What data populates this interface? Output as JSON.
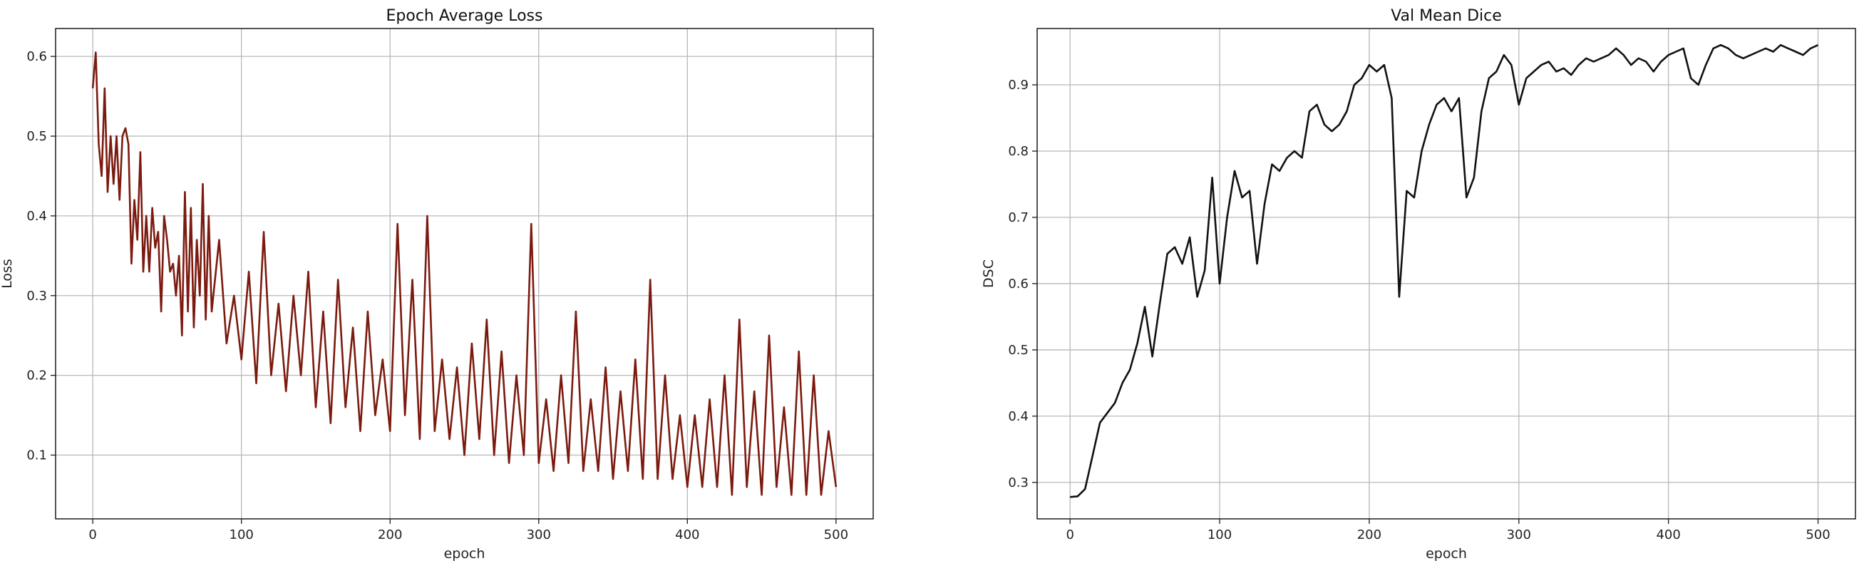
{
  "chart_data": [
    {
      "type": "line",
      "title": "Epoch Average Loss",
      "xlabel": "epoch",
      "ylabel": "Loss",
      "xlim": [
        -25,
        525
      ],
      "ylim": [
        0.02,
        0.635
      ],
      "xticks": [
        0,
        100,
        200,
        300,
        400,
        500
      ],
      "yticks": [
        0.1,
        0.2,
        0.3,
        0.4,
        0.5,
        0.6
      ],
      "xtick_labels": [
        "0",
        "100",
        "200",
        "300",
        "400",
        "500"
      ],
      "ytick_labels": [
        "0.1",
        "0.2",
        "0.3",
        "0.4",
        "0.5",
        "0.6"
      ],
      "grid": true,
      "color": "#7b1a0f",
      "series": [
        {
          "x": [
            0,
            2,
            4,
            6,
            8,
            10,
            12,
            14,
            16,
            18,
            20,
            22,
            24,
            26,
            28,
            30,
            32,
            34,
            36,
            38,
            40,
            42,
            44,
            46,
            48,
            50,
            52,
            54,
            56,
            58,
            60,
            62,
            64,
            66,
            68,
            70,
            72,
            74,
            76,
            78,
            80,
            85,
            90,
            95,
            100,
            105,
            110,
            115,
            120,
            125,
            130,
            135,
            140,
            145,
            150,
            155,
            160,
            165,
            170,
            175,
            180,
            185,
            190,
            195,
            200,
            205,
            210,
            215,
            220,
            225,
            230,
            235,
            240,
            245,
            250,
            255,
            260,
            265,
            270,
            275,
            280,
            285,
            290,
            295,
            300,
            305,
            310,
            315,
            320,
            325,
            330,
            335,
            340,
            345,
            350,
            355,
            360,
            365,
            370,
            375,
            380,
            385,
            390,
            395,
            400,
            405,
            410,
            415,
            420,
            425,
            430,
            435,
            440,
            445,
            450,
            455,
            460,
            465,
            470,
            475,
            480,
            485,
            490,
            495,
            500
          ],
          "y": [
            0.56,
            0.605,
            0.49,
            0.45,
            0.56,
            0.43,
            0.5,
            0.44,
            0.5,
            0.42,
            0.5,
            0.51,
            0.49,
            0.34,
            0.42,
            0.37,
            0.48,
            0.33,
            0.4,
            0.33,
            0.41,
            0.36,
            0.38,
            0.28,
            0.4,
            0.37,
            0.33,
            0.34,
            0.3,
            0.35,
            0.25,
            0.43,
            0.28,
            0.41,
            0.26,
            0.37,
            0.3,
            0.44,
            0.27,
            0.4,
            0.28,
            0.37,
            0.24,
            0.3,
            0.22,
            0.33,
            0.19,
            0.38,
            0.2,
            0.29,
            0.18,
            0.3,
            0.2,
            0.33,
            0.16,
            0.28,
            0.14,
            0.32,
            0.16,
            0.26,
            0.13,
            0.28,
            0.15,
            0.22,
            0.13,
            0.39,
            0.15,
            0.32,
            0.12,
            0.4,
            0.13,
            0.22,
            0.12,
            0.21,
            0.1,
            0.24,
            0.12,
            0.27,
            0.1,
            0.23,
            0.09,
            0.2,
            0.1,
            0.39,
            0.09,
            0.17,
            0.08,
            0.2,
            0.09,
            0.28,
            0.08,
            0.17,
            0.08,
            0.21,
            0.07,
            0.18,
            0.08,
            0.22,
            0.07,
            0.32,
            0.07,
            0.2,
            0.07,
            0.15,
            0.06,
            0.15,
            0.06,
            0.17,
            0.06,
            0.2,
            0.05,
            0.27,
            0.06,
            0.18,
            0.05,
            0.25,
            0.06,
            0.16,
            0.05,
            0.23,
            0.05,
            0.2,
            0.05,
            0.13,
            0.06
          ]
        }
      ]
    },
    {
      "type": "line",
      "title": "Val Mean Dice",
      "xlabel": "epoch",
      "ylabel": "DSC",
      "xlim": [
        -22,
        525
      ],
      "ylim": [
        0.245,
        0.985
      ],
      "xticks": [
        0,
        100,
        200,
        300,
        400,
        500
      ],
      "yticks": [
        0.3,
        0.4,
        0.5,
        0.6,
        0.7,
        0.8,
        0.9
      ],
      "xtick_labels": [
        "0",
        "100",
        "200",
        "300",
        "400",
        "500"
      ],
      "ytick_labels": [
        "0.3",
        "0.4",
        "0.5",
        "0.6",
        "0.7",
        "0.8",
        "0.9"
      ],
      "grid": true,
      "color": "#111111",
      "series": [
        {
          "x": [
            0,
            5,
            10,
            15,
            20,
            25,
            30,
            35,
            40,
            45,
            50,
            55,
            60,
            65,
            70,
            75,
            80,
            85,
            90,
            95,
            100,
            105,
            110,
            115,
            120,
            125,
            130,
            135,
            140,
            145,
            150,
            155,
            160,
            165,
            170,
            175,
            180,
            185,
            190,
            195,
            200,
            205,
            210,
            215,
            220,
            225,
            230,
            235,
            240,
            245,
            250,
            255,
            260,
            265,
            270,
            275,
            280,
            285,
            290,
            295,
            300,
            305,
            310,
            315,
            320,
            325,
            330,
            335,
            340,
            345,
            350,
            355,
            360,
            365,
            370,
            375,
            380,
            385,
            390,
            395,
            400,
            405,
            410,
            415,
            420,
            425,
            430,
            435,
            440,
            445,
            450,
            455,
            460,
            465,
            470,
            475,
            480,
            485,
            490,
            495,
            500
          ],
          "y": [
            0.278,
            0.279,
            0.29,
            0.34,
            0.39,
            0.405,
            0.42,
            0.45,
            0.47,
            0.51,
            0.565,
            0.49,
            0.57,
            0.645,
            0.655,
            0.63,
            0.67,
            0.58,
            0.62,
            0.76,
            0.6,
            0.7,
            0.77,
            0.73,
            0.74,
            0.63,
            0.72,
            0.78,
            0.77,
            0.79,
            0.8,
            0.79,
            0.86,
            0.87,
            0.84,
            0.83,
            0.84,
            0.86,
            0.9,
            0.91,
            0.93,
            0.92,
            0.93,
            0.88,
            0.58,
            0.74,
            0.73,
            0.8,
            0.84,
            0.87,
            0.88,
            0.86,
            0.88,
            0.73,
            0.76,
            0.86,
            0.91,
            0.92,
            0.945,
            0.93,
            0.87,
            0.91,
            0.92,
            0.93,
            0.935,
            0.92,
            0.925,
            0.915,
            0.93,
            0.94,
            0.935,
            0.94,
            0.945,
            0.955,
            0.945,
            0.93,
            0.94,
            0.935,
            0.92,
            0.935,
            0.945,
            0.95,
            0.955,
            0.91,
            0.9,
            0.93,
            0.955,
            0.96,
            0.955,
            0.945,
            0.94,
            0.945,
            0.95,
            0.955,
            0.95,
            0.96,
            0.955,
            0.95,
            0.945,
            0.955,
            0.96
          ]
        }
      ]
    }
  ]
}
